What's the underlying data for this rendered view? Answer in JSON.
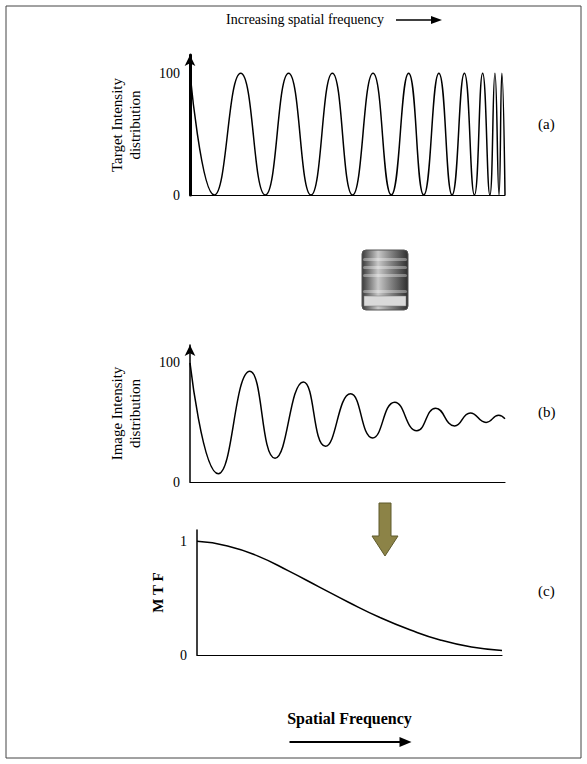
{
  "title": "Increasing spatial frequency",
  "chart_data": [
    {
      "type": "line",
      "panel": "(a)",
      "y_label": "Target Intensity distribution",
      "color": "#000000",
      "x": [
        0,
        7.7,
        16.1,
        23.9,
        31.3,
        38.4,
        45.2,
        51.6,
        58.1,
        63.9,
        69.4,
        74.2,
        79.0,
        83.2,
        87.1,
        90.3,
        92.9,
        95.2,
        96.8,
        98.1,
        99.0,
        100
      ],
      "values": [
        100,
        0,
        100,
        0,
        100,
        0,
        100,
        0,
        100,
        0,
        100,
        0,
        100,
        0,
        100,
        0,
        100,
        0,
        100,
        0,
        100,
        0
      ],
      "xlim": [
        0,
        100
      ],
      "ylim": [
        0,
        115
      ],
      "yticks": [
        0,
        100
      ],
      "tick_labels": "y",
      "grid": false
    },
    {
      "type": "line",
      "panel": "(b)",
      "y_label": "Image Intensity distribution",
      "color": "#000000",
      "x": [
        0,
        9,
        19,
        27,
        36,
        43,
        51,
        58,
        65,
        72,
        78,
        84,
        89,
        94,
        98,
        100
      ],
      "values": [
        100,
        7,
        93,
        20,
        84,
        30,
        74,
        37,
        67,
        43,
        62,
        47,
        58,
        50,
        56,
        53
      ],
      "xlim": [
        0,
        100
      ],
      "ylim": [
        0,
        115
      ],
      "yticks": [
        0,
        100
      ],
      "tick_labels": "y",
      "grid": false
    },
    {
      "type": "line",
      "panel": "(c)",
      "y_label": "M T F",
      "x_label": "Spatial Frequency",
      "color": "#000000",
      "x": [
        0,
        10,
        20,
        30,
        40,
        50,
        60,
        70,
        80,
        90,
        100
      ],
      "values": [
        1.0,
        0.96,
        0.87,
        0.74,
        0.6,
        0.46,
        0.33,
        0.22,
        0.13,
        0.07,
        0.04
      ],
      "xlim": [
        0,
        100
      ],
      "ylim": [
        0,
        1.1
      ],
      "yticks": [
        0,
        1
      ],
      "tick_labels": "y",
      "grid": false
    }
  ]
}
